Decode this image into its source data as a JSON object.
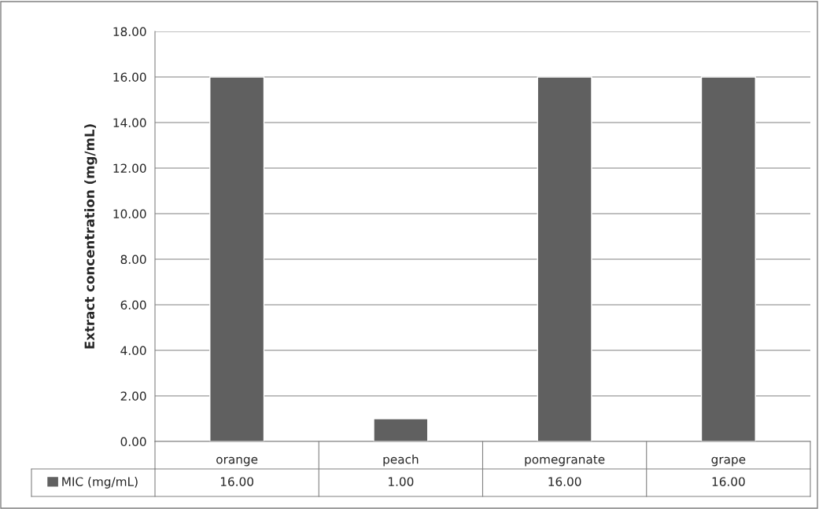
{
  "chart_data": {
    "type": "bar",
    "ylabel": "Extract concentration (mg/mL)",
    "categories": [
      "orange",
      "peach",
      "pomegranate",
      "grape"
    ],
    "series": [
      {
        "name": "MIC (mg/mL)",
        "color": "#606060",
        "values": [
          16.0,
          1.0,
          16.0,
          16.0
        ],
        "value_labels": [
          "16.00",
          "1.00",
          "16.00",
          "16.00"
        ]
      }
    ],
    "ylim": [
      0,
      18
    ],
    "yticks": [
      {
        "value": 0,
        "label": "0.00"
      },
      {
        "value": 2,
        "label": "2.00"
      },
      {
        "value": 4,
        "label": "4.00"
      },
      {
        "value": 6,
        "label": "6.00"
      },
      {
        "value": 8,
        "label": "8.00"
      },
      {
        "value": 10,
        "label": "10.00"
      },
      {
        "value": 12,
        "label": "12.00"
      },
      {
        "value": 14,
        "label": "14.00"
      },
      {
        "value": 16,
        "label": "16.00"
      },
      {
        "value": 18,
        "label": "18.00"
      }
    ],
    "grid": "y",
    "legend": "bottom"
  }
}
